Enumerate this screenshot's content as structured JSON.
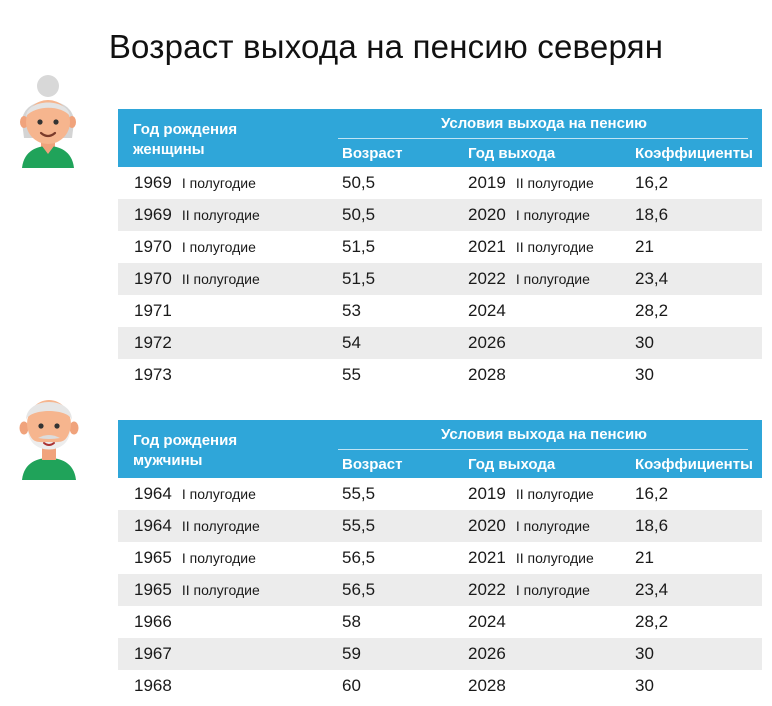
{
  "title": "Возраст выхода на пенсию северян",
  "women": {
    "birth_header": "Год рождения женщины",
    "conditions_header": "Условия выхода на пенсию",
    "col_age": "Возраст",
    "col_year": "Год выхода",
    "col_coef": "Коэффициенты",
    "rows": [
      {
        "birth": "1969",
        "birth_half": "I полугодие",
        "age": "50,5",
        "year": "2019",
        "year_half": "II полугодие",
        "coef": "16,2"
      },
      {
        "birth": "1969",
        "birth_half": "II полугодие",
        "age": "50,5",
        "year": "2020",
        "year_half": "I полугодие",
        "coef": "18,6"
      },
      {
        "birth": "1970",
        "birth_half": "I полугодие",
        "age": "51,5",
        "year": "2021",
        "year_half": "II полугодие",
        "coef": "21"
      },
      {
        "birth": "1970",
        "birth_half": "II полугодие",
        "age": "51,5",
        "year": "2022",
        "year_half": "I полугодие",
        "coef": "23,4"
      },
      {
        "birth": "1971",
        "birth_half": "",
        "age": "53",
        "year": "2024",
        "year_half": "",
        "coef": "28,2"
      },
      {
        "birth": "1972",
        "birth_half": "",
        "age": "54",
        "year": "2026",
        "year_half": "",
        "coef": "30"
      },
      {
        "birth": "1973",
        "birth_half": "",
        "age": "55",
        "year": "2028",
        "year_half": "",
        "coef": "30"
      }
    ]
  },
  "men": {
    "birth_header": "Год рождения мужчины",
    "conditions_header": "Условия выхода на пенсию",
    "col_age": "Возраст",
    "col_year": "Год выхода",
    "col_coef": "Коэффициенты",
    "rows": [
      {
        "birth": "1964",
        "birth_half": "I полугодие",
        "age": "55,5",
        "year": "2019",
        "year_half": "II полугодие",
        "coef": "16,2"
      },
      {
        "birth": "1964",
        "birth_half": "II полугодие",
        "age": "55,5",
        "year": "2020",
        "year_half": "I полугодие",
        "coef": "18,6"
      },
      {
        "birth": "1965",
        "birth_half": "I полугодие",
        "age": "56,5",
        "year": "2021",
        "year_half": "II полугодие",
        "coef": "21"
      },
      {
        "birth": "1965",
        "birth_half": "II полугодие",
        "age": "56,5",
        "year": "2022",
        "year_half": "I полугодие",
        "coef": "23,4"
      },
      {
        "birth": "1966",
        "birth_half": "",
        "age": "58",
        "year": "2024",
        "year_half": "",
        "coef": "28,2"
      },
      {
        "birth": "1967",
        "birth_half": "",
        "age": "59",
        "year": "2026",
        "year_half": "",
        "coef": "30"
      },
      {
        "birth": "1968",
        "birth_half": "",
        "age": "60",
        "year": "2028",
        "year_half": "",
        "coef": "30"
      }
    ]
  },
  "colors": {
    "header_bg": "#2fa6d9",
    "row_alt": "#ececec",
    "shirt": "#20a35a"
  },
  "icons": {
    "women_avatar": "grandmother-icon",
    "men_avatar": "grandfather-icon"
  }
}
